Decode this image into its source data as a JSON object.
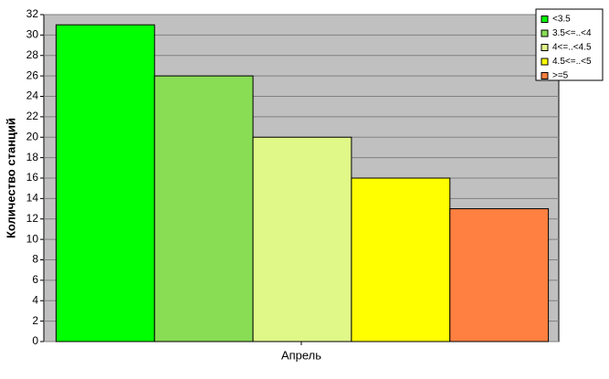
{
  "chart_data": {
    "type": "bar",
    "ylabel": "Количество станций",
    "categories": [
      "Апрель"
    ],
    "series": [
      {
        "name": "<3.5",
        "color": "#00ff00",
        "values": [
          31
        ]
      },
      {
        "name": "3.5<=..<4",
        "color": "#88dd55",
        "values": [
          26
        ]
      },
      {
        "name": "4<=..<4.5",
        "color": "#e0f888",
        "values": [
          20
        ]
      },
      {
        "name": "4.5<=..<5",
        "color": "#ffff00",
        "values": [
          16
        ]
      },
      {
        "name": ">=5",
        "color": "#ff8040",
        "values": [
          13
        ]
      }
    ],
    "ylim": [
      0,
      32
    ],
    "yticks": [
      0,
      2,
      4,
      6,
      8,
      10,
      12,
      14,
      16,
      18,
      20,
      22,
      24,
      26,
      28,
      30,
      32
    ],
    "grid": true,
    "legend": "upper right"
  }
}
